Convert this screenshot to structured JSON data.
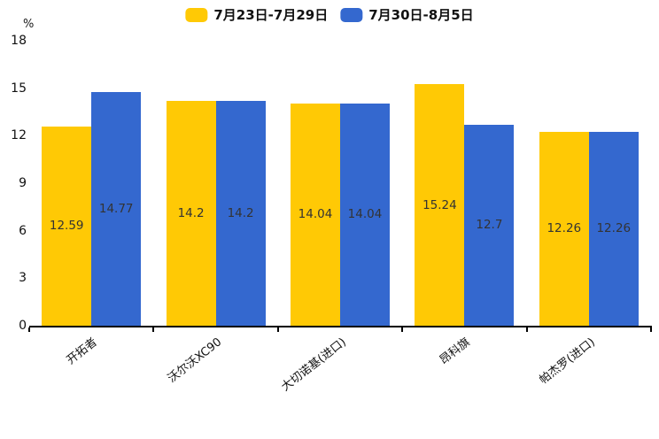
{
  "chart_data": {
    "type": "bar",
    "title": "",
    "categories": [
      "开拓者",
      "沃尔沃XC90",
      "大切诺基(进口)",
      "昂科旗",
      "帕杰罗(进口)"
    ],
    "series": [
      {
        "name": "7月23日-7月29日",
        "color": "#FFC905",
        "values": [
          12.59,
          14.2,
          14.04,
          15.24,
          12.26
        ]
      },
      {
        "name": "7月30日-8月5日",
        "color": "#3468CF",
        "values": [
          14.77,
          14.2,
          14.04,
          12.7,
          12.26
        ]
      }
    ],
    "xlabel": "",
    "ylabel": "%",
    "ylim": [
      0,
      18
    ],
    "yticks": [
      0,
      3,
      6,
      9,
      12,
      15,
      18
    ],
    "grid": false,
    "legend_position": "top-center",
    "bar_value_labels": [
      "12.59",
      "14.77",
      "14.2",
      "14.2",
      "14.04",
      "14.04",
      "15.24",
      "12.7",
      "12.26",
      "12.26"
    ],
    "label_color": "#333333",
    "axis_color": "#000000"
  }
}
